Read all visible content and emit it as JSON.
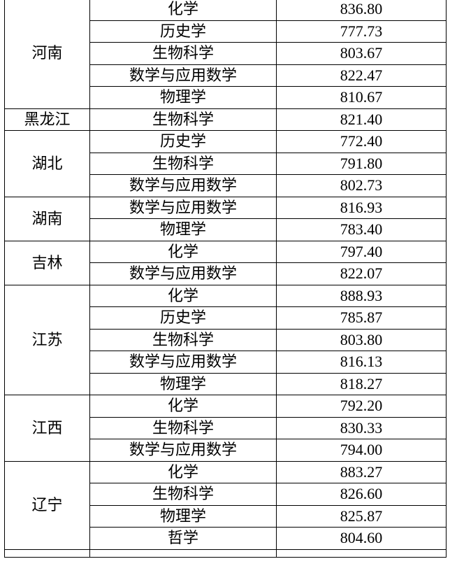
{
  "style": {
    "text_color": "#000000",
    "border_color": "#000000",
    "background_color": "#ffffff"
  },
  "table": {
    "columns": [
      "province",
      "major",
      "score"
    ],
    "groups": [
      {
        "province": "河南",
        "rows": [
          {
            "major": "化学",
            "score": "836.80"
          },
          {
            "major": "历史学",
            "score": "777.73"
          },
          {
            "major": "生物科学",
            "score": "803.67"
          },
          {
            "major": "数学与应用数学",
            "score": "822.47"
          },
          {
            "major": "物理学",
            "score": "810.67"
          }
        ]
      },
      {
        "province": "黑龙江",
        "rows": [
          {
            "major": "生物科学",
            "score": "821.40"
          }
        ]
      },
      {
        "province": "湖北",
        "rows": [
          {
            "major": "历史学",
            "score": "772.40"
          },
          {
            "major": "生物科学",
            "score": "791.80"
          },
          {
            "major": "数学与应用数学",
            "score": "802.73"
          }
        ]
      },
      {
        "province": "湖南",
        "rows": [
          {
            "major": "数学与应用数学",
            "score": "816.93"
          },
          {
            "major": "物理学",
            "score": "783.40"
          }
        ]
      },
      {
        "province": "吉林",
        "rows": [
          {
            "major": "化学",
            "score": "797.40"
          },
          {
            "major": "数学与应用数学",
            "score": "822.07"
          }
        ]
      },
      {
        "province": "江苏",
        "rows": [
          {
            "major": "化学",
            "score": "888.93"
          },
          {
            "major": "历史学",
            "score": "785.87"
          },
          {
            "major": "生物科学",
            "score": "803.80"
          },
          {
            "major": "数学与应用数学",
            "score": "816.13"
          },
          {
            "major": "物理学",
            "score": "818.27"
          }
        ]
      },
      {
        "province": "江西",
        "rows": [
          {
            "major": "化学",
            "score": "792.20"
          },
          {
            "major": "生物科学",
            "score": "830.33"
          },
          {
            "major": "数学与应用数学",
            "score": "794.00"
          }
        ]
      },
      {
        "province": "辽宁",
        "rows": [
          {
            "major": "化学",
            "score": "883.27"
          },
          {
            "major": "生物科学",
            "score": "826.60"
          },
          {
            "major": "物理学",
            "score": "825.87"
          },
          {
            "major": "哲学",
            "score": "804.60"
          }
        ]
      }
    ]
  }
}
